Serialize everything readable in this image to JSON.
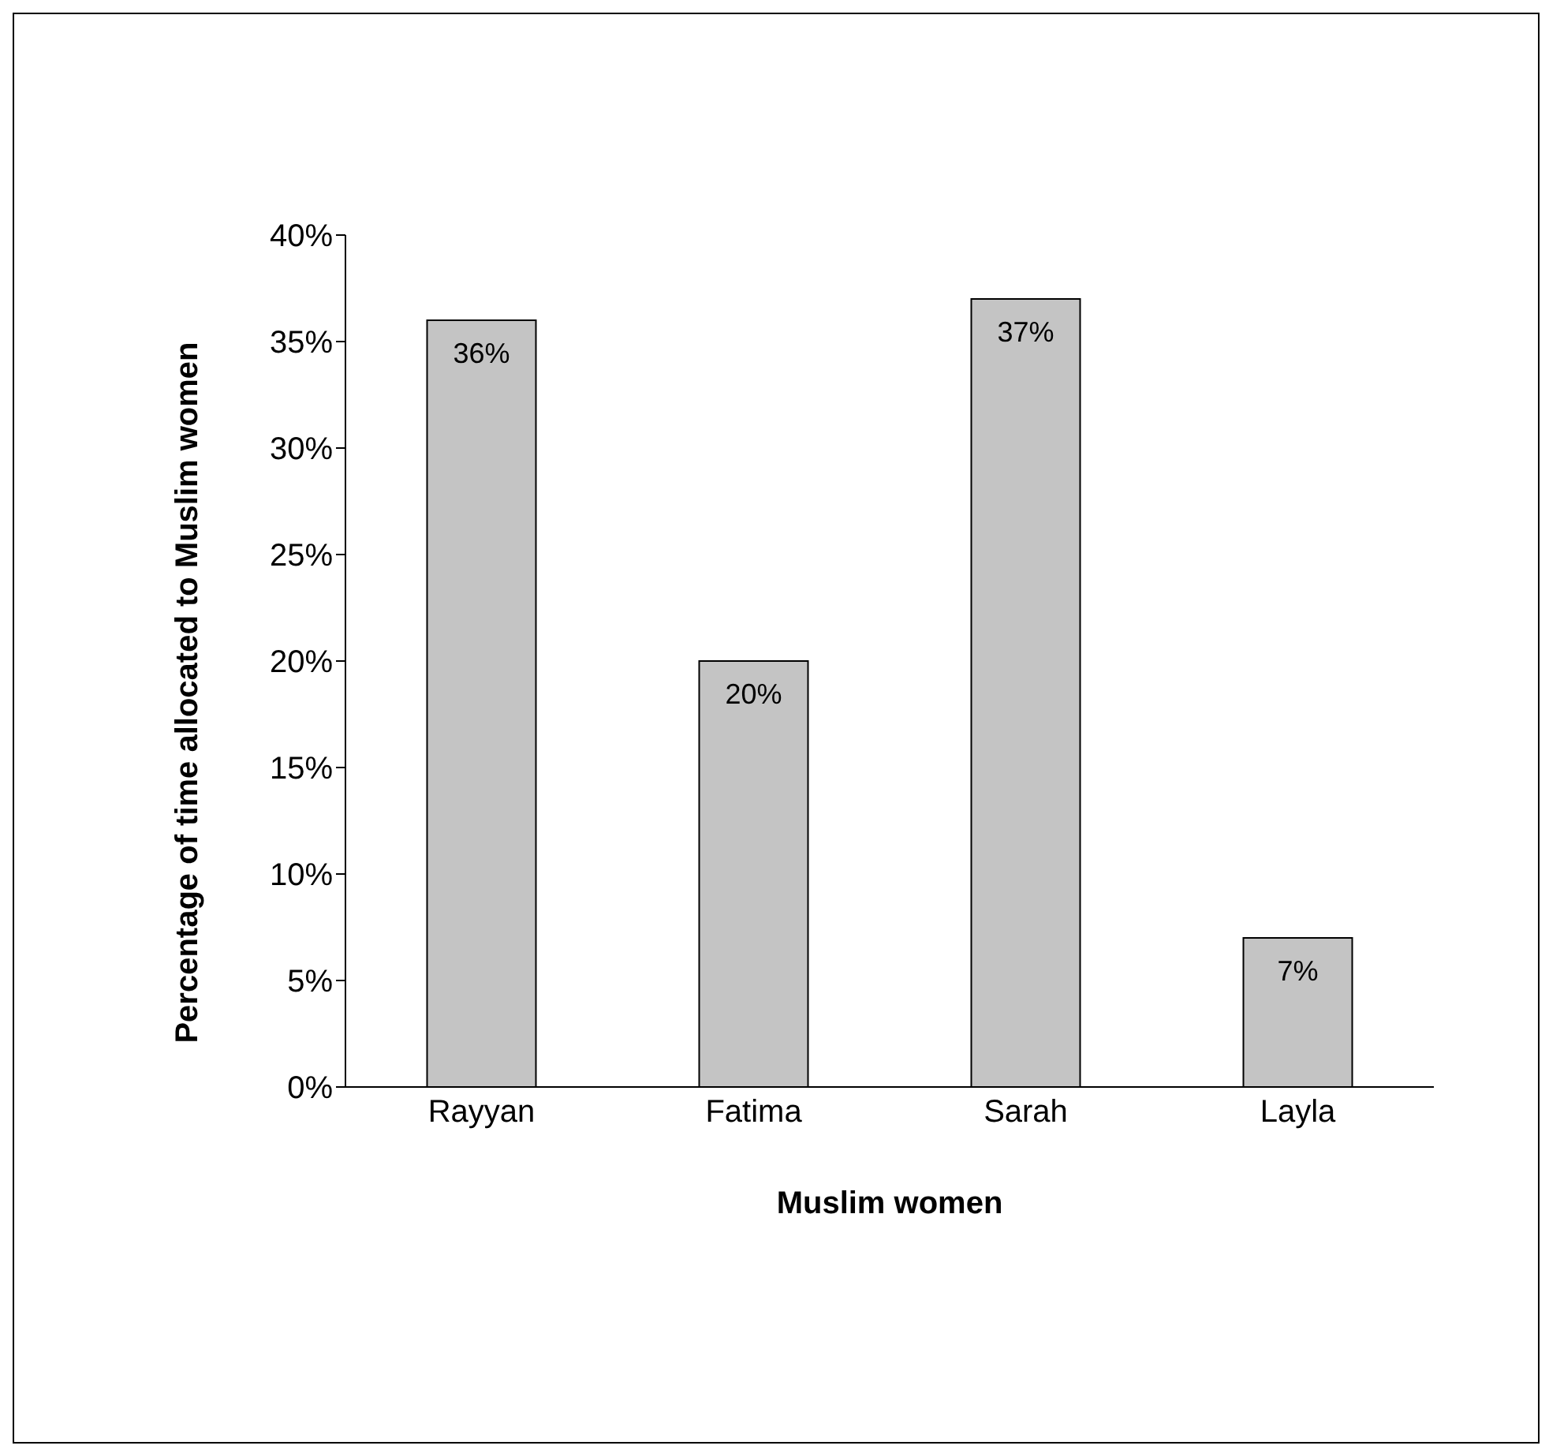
{
  "chart_data": {
    "type": "bar",
    "xlabel": "Muslim women",
    "ylabel": "Percentage of time allocated to Muslim women",
    "categories": [
      "Rayyan",
      "Fatima",
      "Sarah",
      "Layla"
    ],
    "values": [
      36,
      20,
      37,
      7
    ],
    "value_labels": [
      "36%",
      "20%",
      "37%",
      "7%"
    ],
    "color": "#c4c4c4",
    "ylim": [
      0,
      40
    ],
    "yticks": [
      {
        "value": 0,
        "label": "0%"
      },
      {
        "value": 5,
        "label": "5%"
      },
      {
        "value": 10,
        "label": "10%"
      },
      {
        "value": 15,
        "label": "15%"
      },
      {
        "value": 20,
        "label": "20%"
      },
      {
        "value": 25,
        "label": "25%"
      },
      {
        "value": 30,
        "label": "30%"
      },
      {
        "value": 35,
        "label": "35%"
      },
      {
        "value": 40,
        "label": "40%"
      }
    ],
    "grid": false,
    "legend": false
  }
}
